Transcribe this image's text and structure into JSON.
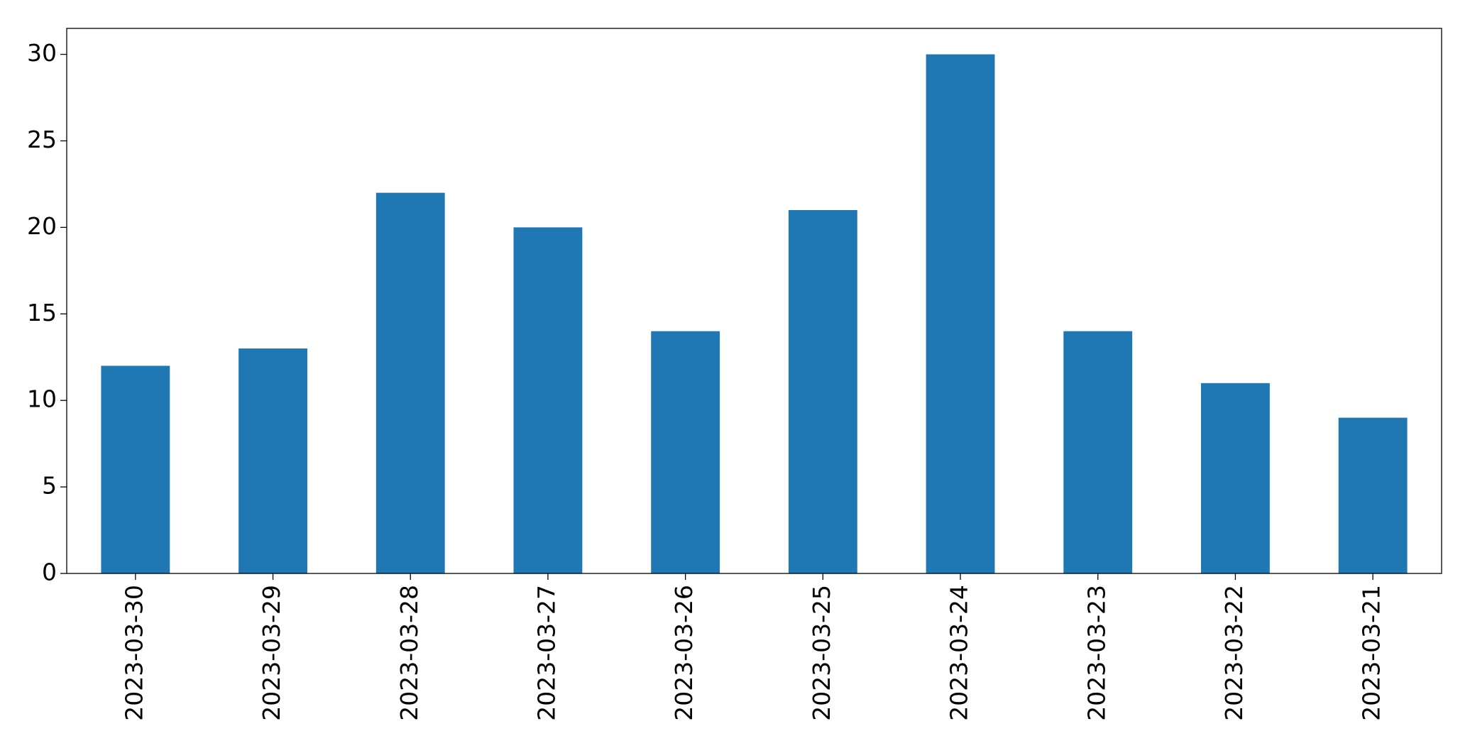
{
  "chart_data": {
    "type": "bar",
    "categories": [
      "2023-03-30",
      "2023-03-29",
      "2023-03-28",
      "2023-03-27",
      "2023-03-26",
      "2023-03-25",
      "2023-03-24",
      "2023-03-23",
      "2023-03-22",
      "2023-03-21"
    ],
    "values": [
      12,
      13,
      22,
      20,
      14,
      21,
      30,
      14,
      11,
      9
    ],
    "color": "#1f77b4",
    "ylim": [
      0,
      31.5
    ],
    "yticks": [
      0,
      5,
      10,
      15,
      20,
      25,
      30
    ],
    "grid": false
  }
}
